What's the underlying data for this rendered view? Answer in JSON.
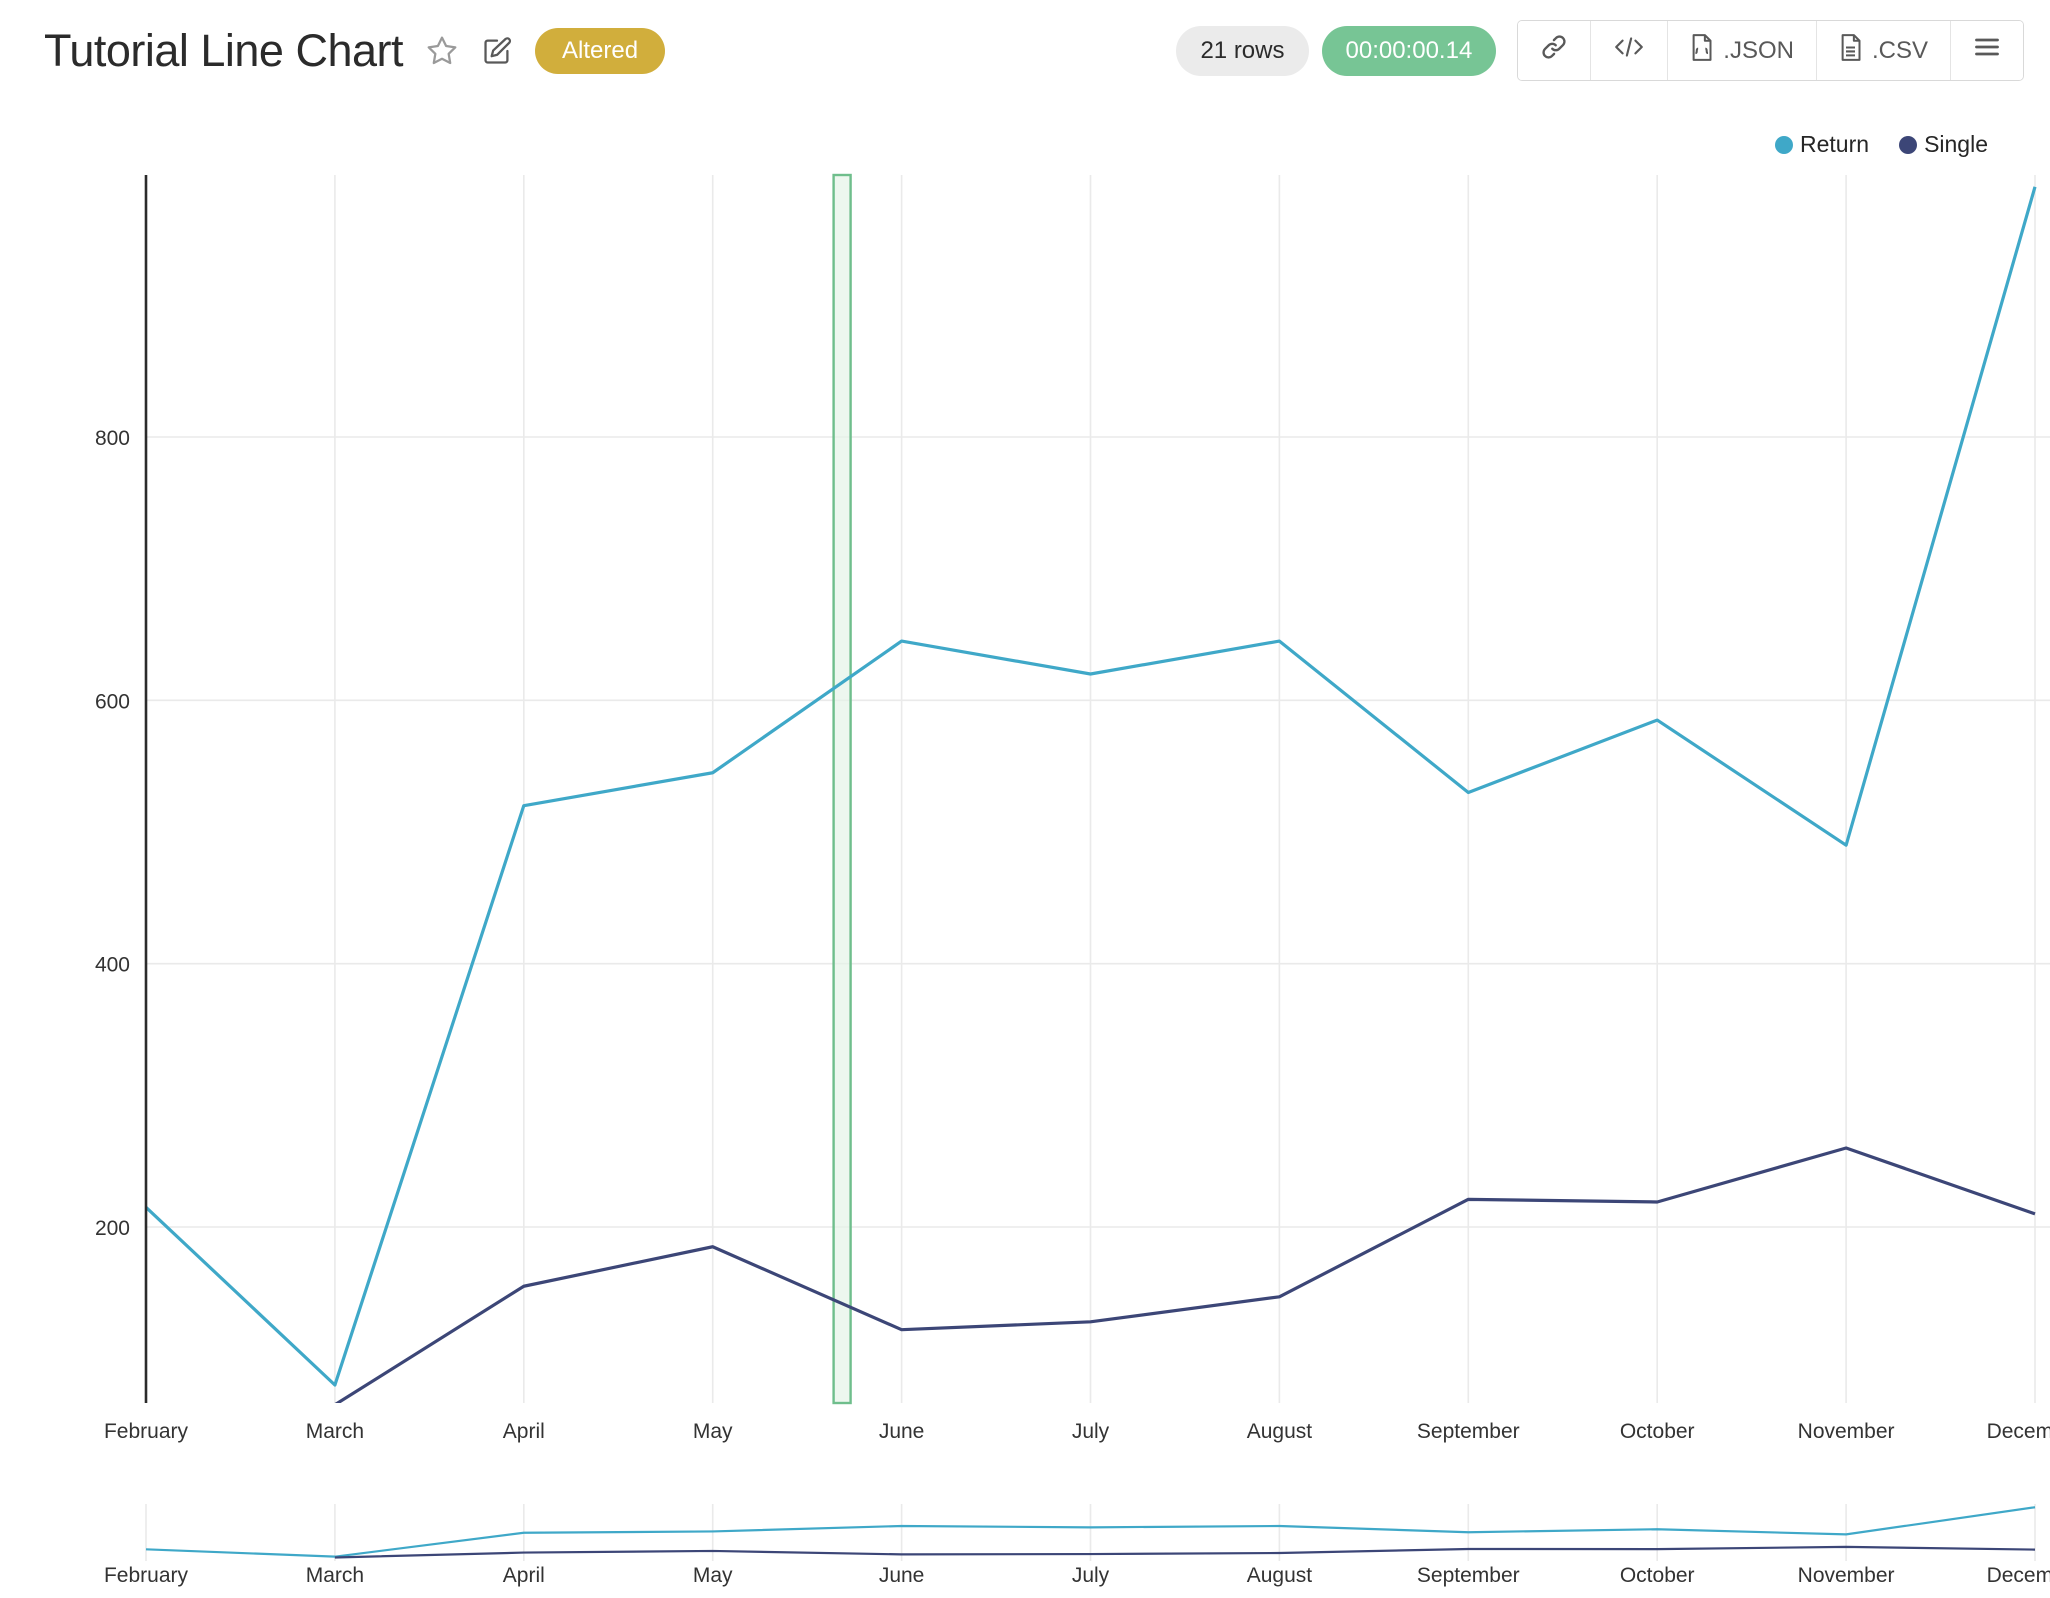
{
  "header": {
    "title": "Tutorial Line Chart",
    "altered_badge": "Altered",
    "rows_badge": "21 rows",
    "timer_badge": "00:00:00.14",
    "export_json_label": ".JSON",
    "export_csv_label": ".CSV"
  },
  "colors": {
    "return_series": "#3FA8C8",
    "single_series": "#3C4677",
    "altered_badge_bg": "#D1AE3C",
    "timer_badge_bg": "#77C595",
    "rows_badge_bg": "#EBEBEB",
    "grid": "#EAEAEA",
    "axis": "#2B2B2B",
    "tick_text": "#333333",
    "selection_fill": "#E3F2E7",
    "selection_border": "#6FBE8C"
  },
  "legend": [
    {
      "label": "Return",
      "color": "#3FA8C8"
    },
    {
      "label": "Single",
      "color": "#3C4677"
    }
  ],
  "chart_data": {
    "type": "line",
    "title": "Tutorial Line Chart",
    "x": [
      "February",
      "March",
      "April",
      "May",
      "June",
      "July",
      "August",
      "September",
      "October",
      "November",
      "December"
    ],
    "series": [
      {
        "name": "Return",
        "color": "#3FA8C8",
        "values": [
          215,
          80,
          520,
          545,
          645,
          620,
          645,
          530,
          585,
          490,
          990
        ]
      },
      {
        "name": "Single",
        "color": "#3C4677",
        "values": [
          null,
          65,
          155,
          185,
          122,
          128,
          147,
          221,
          219,
          260,
          210
        ]
      }
    ],
    "yticks": [
      200,
      400,
      600,
      800
    ],
    "ylim": [
      66,
      1000
    ],
    "grid": true,
    "legend_position": "top-right",
    "selection_band": {
      "from_index": 3.64,
      "to_index": 3.73
    },
    "has_range_selector": true
  }
}
